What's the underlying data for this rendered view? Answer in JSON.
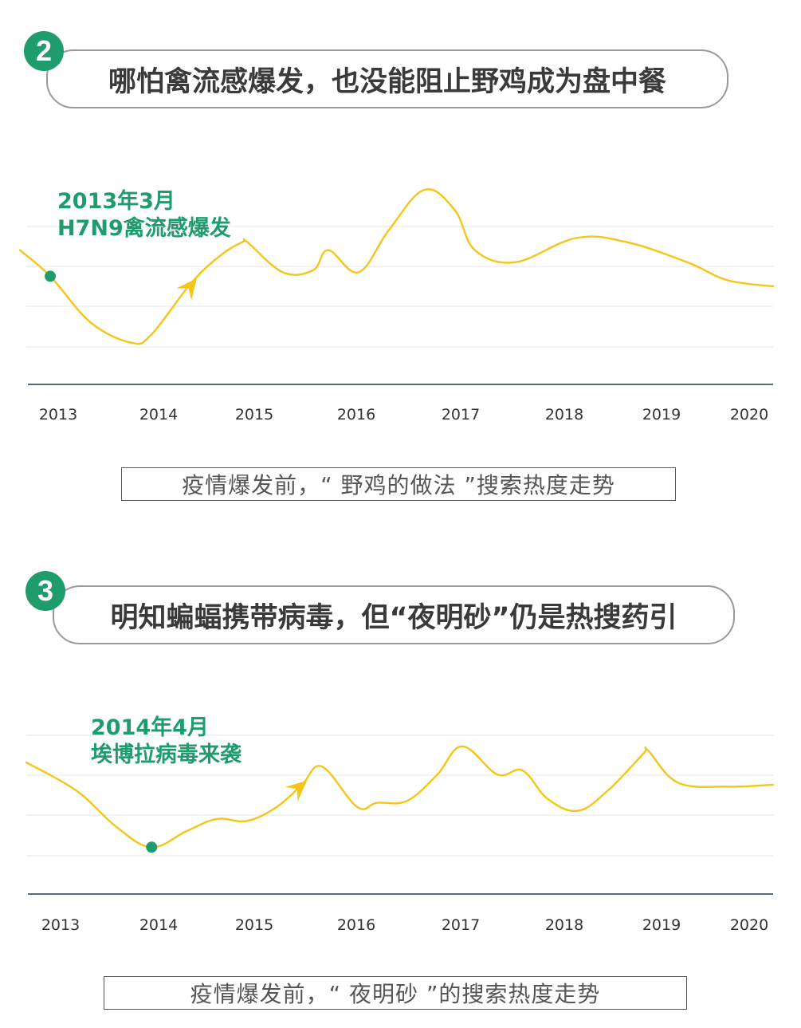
{
  "charts": [
    {
      "badge": "2",
      "title": "哪怕禽流感爆发，也没能阻止野鸡成为盘中餐",
      "annotation_line1": "2013年3月",
      "annotation_line2": "H7N9禽流感爆发",
      "caption": "疫情爆发前，“ 野鸡的做法 ”搜索热度走势",
      "colors": {
        "line": "#f5c518",
        "marker": "#1f9c6c",
        "axis": "#5a6b73",
        "grid": "#e6e6e6"
      }
    },
    {
      "badge": "3",
      "title": "明知蝙蝠携带病毒，但“夜明砂”仍是热搜药引",
      "annotation_line1": "2014年4月",
      "annotation_line2": "埃博拉病毒来袭",
      "caption": "疫情爆发前，“ 夜明砂 ”的搜索热度走势",
      "colors": {
        "line": "#f5c518",
        "marker": "#1f9c6c",
        "axis": "#5a6b73",
        "grid": "#e6e6e6"
      }
    }
  ],
  "chart_data": [
    {
      "type": "line",
      "categories": [
        "2013",
        "2014",
        "2015",
        "2016",
        "2017",
        "2018",
        "2019",
        "2020"
      ],
      "x_range": [
        2012.8,
        2020.25
      ],
      "y_range": [
        0,
        5
      ],
      "grid": "horizontal",
      "series": [
        {
          "x": [
            2012.8,
            2013.1,
            2013.5,
            2013.9,
            2014.1,
            2014.5,
            2014.8,
            2015.0,
            2015.05,
            2015.4,
            2015.7,
            2015.85,
            2016.15,
            2016.45,
            2016.8,
            2017.1,
            2017.3,
            2017.7,
            2018.3,
            2018.8,
            2019.4,
            2019.8,
            2020.25
          ],
          "y": [
            3.4,
            2.75,
            1.6,
            1.1,
            1.3,
            2.6,
            3.3,
            3.6,
            3.6,
            2.85,
            2.9,
            3.4,
            2.85,
            3.9,
            4.9,
            4.4,
            3.4,
            3.1,
            3.7,
            3.6,
            3.1,
            2.65,
            2.5
          ]
        }
      ],
      "markers": [
        {
          "x": 2013.1,
          "y": 2.75
        }
      ],
      "arrow": {
        "from": [
          2014.1,
          1.3
        ],
        "to": [
          2014.55,
          2.7
        ]
      }
    },
    {
      "type": "line",
      "categories": [
        "2013",
        "2014",
        "2015",
        "2016",
        "2017",
        "2018",
        "2019",
        "2020"
      ],
      "x_range": [
        2012.8,
        2020.25
      ],
      "y_range": [
        0,
        5
      ],
      "grid": "horizontal",
      "series": [
        {
          "x": [
            2012.8,
            2013.3,
            2013.7,
            2014.05,
            2014.4,
            2014.7,
            2015.0,
            2015.3,
            2015.55,
            2015.75,
            2016.1,
            2016.3,
            2016.6,
            2016.9,
            2017.15,
            2017.5,
            2017.75,
            2018.0,
            2018.3,
            2018.6,
            2018.95,
            2019.0,
            2019.3,
            2019.8,
            2020.25
          ],
          "y": [
            3.3,
            2.6,
            1.7,
            1.2,
            1.6,
            1.9,
            1.85,
            2.2,
            2.75,
            3.2,
            2.2,
            2.3,
            2.35,
            3.0,
            3.7,
            3.0,
            3.1,
            2.4,
            2.1,
            2.6,
            3.5,
            3.6,
            2.8,
            2.7,
            2.75
          ]
        }
      ],
      "markers": [
        {
          "x": 2014.05,
          "y": 1.2
        }
      ],
      "arrow": {
        "from": [
          2015.3,
          2.2
        ],
        "to": [
          2015.6,
          2.85
        ]
      }
    }
  ]
}
